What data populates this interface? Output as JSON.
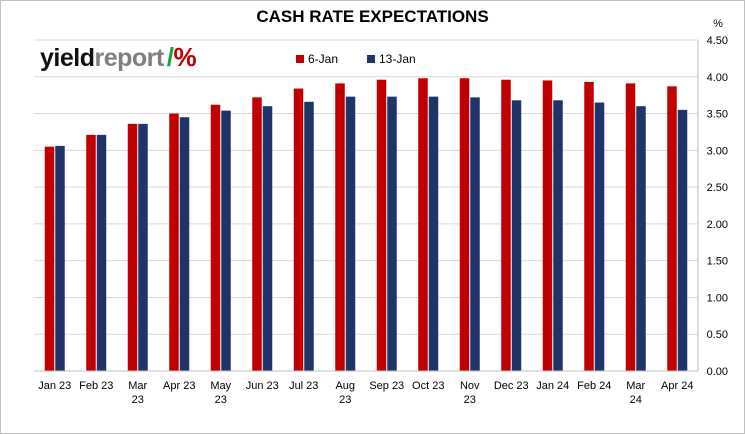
{
  "header": {
    "title": "CASH RATE EXPECTATIONS",
    "unit": "%"
  },
  "logo": {
    "text_main": "yield",
    "text_secondary": "report",
    "pct_symbol": "%"
  },
  "colors": {
    "series_6jan": "#c00000",
    "series_13jan": "#1f3468",
    "gridline": "#d9d9d9",
    "axis": "#bfbfbf"
  },
  "chart_data": {
    "type": "bar",
    "title": "CASH RATE EXPECTATIONS",
    "xlabel": "",
    "ylabel": "%",
    "ylim": [
      0,
      4.5
    ],
    "y_ticks": [
      "0.00",
      "0.50",
      "1.00",
      "1.50",
      "2.00",
      "2.50",
      "3.00",
      "3.50",
      "4.00",
      "4.50"
    ],
    "y_axis_side": "right",
    "grid": true,
    "legend_position": "top-center",
    "categories": [
      [
        "Jan 23"
      ],
      [
        "Feb 23"
      ],
      [
        "Mar",
        "23"
      ],
      [
        "Apr 23"
      ],
      [
        "May",
        "23"
      ],
      [
        "Jun 23"
      ],
      [
        "Jul 23"
      ],
      [
        "Aug",
        "23"
      ],
      [
        "Sep 23"
      ],
      [
        "Oct 23"
      ],
      [
        "Nov",
        "23"
      ],
      [
        "Dec 23"
      ],
      [
        "Jan 24"
      ],
      [
        "Feb 24"
      ],
      [
        "Mar",
        "24"
      ],
      [
        "Apr 24"
      ]
    ],
    "series": [
      {
        "name": "6-Jan",
        "color": "#c00000",
        "values": [
          3.05,
          3.21,
          3.36,
          3.5,
          3.62,
          3.72,
          3.84,
          3.91,
          3.96,
          3.98,
          3.98,
          3.96,
          3.95,
          3.93,
          3.91,
          3.87
        ]
      },
      {
        "name": "13-Jan",
        "color": "#1f3468",
        "values": [
          3.06,
          3.21,
          3.36,
          3.45,
          3.54,
          3.6,
          3.66,
          3.73,
          3.73,
          3.73,
          3.72,
          3.68,
          3.68,
          3.65,
          3.6,
          3.55
        ]
      }
    ]
  }
}
